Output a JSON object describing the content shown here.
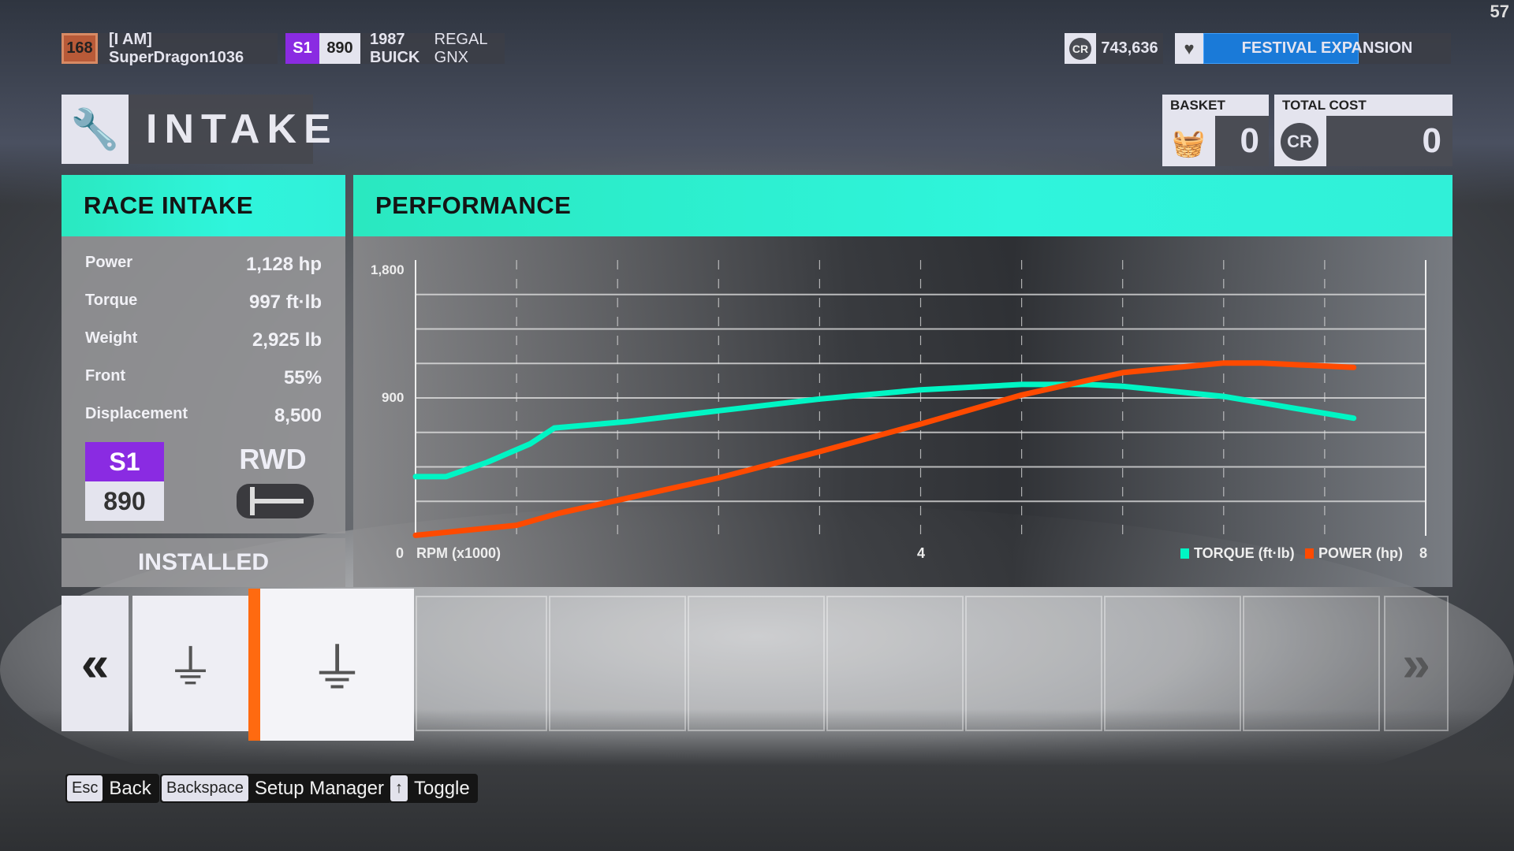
{
  "topbar": {
    "level": "168",
    "gamertag": "[I AM] SuperDragon1036",
    "class": "S1",
    "pi": "890",
    "car_bold": "1987 BUICK",
    "car_light": "REGAL GNX",
    "credits_icon": "CR",
    "credits": "743,636",
    "festival": "FESTIVAL EXPANSION",
    "fps": "57"
  },
  "title": "INTAKE",
  "basket": {
    "label": "BASKET",
    "value": "0"
  },
  "total_cost": {
    "label": "TOTAL COST",
    "icon": "CR",
    "value": "0"
  },
  "part": {
    "name": "RACE INTAKE",
    "stats": [
      {
        "label": "Power",
        "value": "1,128 hp"
      },
      {
        "label": "Torque",
        "value": "997 ft·lb"
      },
      {
        "label": "Weight",
        "value": "2,925 lb"
      },
      {
        "label": "Front",
        "value": "55%"
      },
      {
        "label": "Displacement",
        "value": "8,500"
      }
    ],
    "class": "S1",
    "pi": "890",
    "drivetrain": "RWD",
    "status": "INSTALLED"
  },
  "colors": {
    "accent": "#2ff0d6",
    "class_s1": "#8a2be2",
    "torque": "#00f5c4",
    "power": "#ff4a00",
    "selected": "#ff6a10"
  },
  "chart_data": {
    "type": "line",
    "title": "PERFORMANCE",
    "xlabel": "RPM (x1000)",
    "xlim": [
      0,
      8
    ],
    "ylim": [
      0,
      1800
    ],
    "x_tick_labels": [
      "0",
      "4",
      "8"
    ],
    "y_tick_labels": [
      "900",
      "1,800"
    ],
    "grid": true,
    "legend_position": "bottom-right",
    "series": [
      {
        "name": "TORQUE (ft·lb)",
        "color": "#00f5c4",
        "x": [
          0,
          0.24,
          0.57,
          0.91,
          1.1,
          1.69,
          2.4,
          3.2,
          4.0,
          4.8,
          5.31,
          5.6,
          6.4,
          7.43
        ],
        "y": [
          386,
          386,
          481,
          601,
          704,
          747,
          816,
          893,
          953,
          988,
          988,
          976,
          910,
          768
        ]
      },
      {
        "name": "POWER (hp)",
        "color": "#ff4a00",
        "x": [
          0,
          0.8,
          1.13,
          1.6,
          2.4,
          3.2,
          4.0,
          4.8,
          5.6,
          6.4,
          6.7,
          7.43
        ],
        "y": [
          3,
          69,
          146,
          232,
          378,
          550,
          730,
          919,
          1065,
          1128,
          1128,
          1099
        ]
      }
    ]
  },
  "footer": [
    {
      "key": "Esc",
      "label": "Back"
    },
    {
      "key": "Backspace",
      "label": "Setup Manager"
    },
    {
      "key": "↑",
      "label": "Toggle"
    }
  ]
}
